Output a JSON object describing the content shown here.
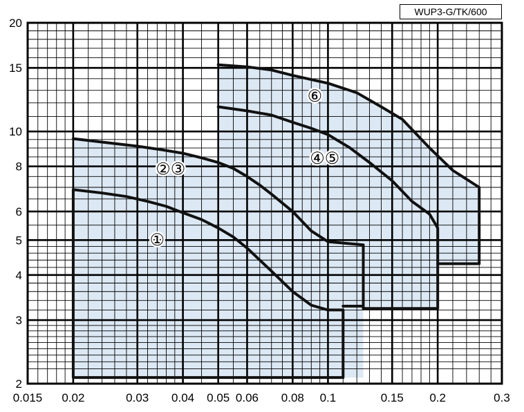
{
  "chart_data": {
    "type": "area",
    "title": "WUP3-G/TK/600",
    "xlabel": "",
    "ylabel": "",
    "x_scale": "log",
    "y_scale": "log",
    "xlim": [
      0.015,
      0.3
    ],
    "ylim": [
      2,
      20
    ],
    "grid": true,
    "x_ticks": [
      0.015,
      0.02,
      0.03,
      0.04,
      0.05,
      0.06,
      0.08,
      0.1,
      0.15,
      0.2,
      0.3
    ],
    "x_tick_labels": [
      "0.015",
      "0.02",
      "0.03",
      "0.04",
      "0.05",
      "0.06",
      "0.08",
      "0.1",
      "0.15",
      "0.2",
      "0.3"
    ],
    "y_ticks": [
      2,
      3,
      4,
      5,
      6,
      8,
      10,
      15,
      20
    ],
    "y_tick_labels": [
      "2",
      "3",
      "4",
      "5",
      "6",
      "8",
      "10",
      "15",
      "20"
    ],
    "fill_color": "#dce8f3",
    "line_color": "#111111",
    "regions": [
      {
        "id": "A",
        "points": [
          [
            0.02,
            2.08
          ],
          [
            0.02,
            9.55
          ],
          [
            0.03,
            9.1
          ],
          [
            0.04,
            8.7
          ],
          [
            0.05,
            8.2
          ],
          [
            0.06,
            7.5
          ],
          [
            0.07,
            6.7
          ],
          [
            0.08,
            6.0
          ],
          [
            0.09,
            5.3
          ],
          [
            0.1,
            4.95
          ],
          [
            0.125,
            4.85
          ],
          [
            0.125,
            3.28
          ],
          [
            0.11,
            3.2
          ],
          [
            0.11,
            2.08
          ]
        ]
      },
      {
        "id": "B",
        "points": [
          [
            0.05,
            2.08
          ],
          [
            0.05,
            15.3
          ],
          [
            0.06,
            15.1
          ],
          [
            0.07,
            14.8
          ],
          [
            0.08,
            14.3
          ],
          [
            0.1,
            13.6
          ],
          [
            0.12,
            12.8
          ],
          [
            0.14,
            11.7
          ],
          [
            0.16,
            10.8
          ],
          [
            0.19,
            9.0
          ],
          [
            0.22,
            7.8
          ],
          [
            0.26,
            7.0
          ],
          [
            0.26,
            4.3
          ],
          [
            0.2,
            4.3
          ],
          [
            0.2,
            3.23
          ],
          [
            0.125,
            3.23
          ],
          [
            0.125,
            2.08
          ]
        ]
      }
    ],
    "series": [
      {
        "label": "①",
        "label_at": [
          0.034,
          5.0
        ],
        "points": [
          [
            0.02,
            6.9
          ],
          [
            0.024,
            6.75
          ],
          [
            0.028,
            6.6
          ],
          [
            0.032,
            6.4
          ],
          [
            0.036,
            6.2
          ],
          [
            0.04,
            5.95
          ],
          [
            0.045,
            5.7
          ],
          [
            0.05,
            5.4
          ],
          [
            0.055,
            5.1
          ],
          [
            0.06,
            4.75
          ],
          [
            0.07,
            4.1
          ],
          [
            0.08,
            3.6
          ],
          [
            0.09,
            3.3
          ],
          [
            0.1,
            3.2
          ],
          [
            0.11,
            3.2
          ],
          [
            0.11,
            2.08
          ],
          [
            0.02,
            2.08
          ],
          [
            0.02,
            6.9
          ]
        ]
      },
      {
        "label": "②③",
        "label_at": [
          0.037,
          7.85
        ],
        "points": [
          [
            0.02,
            9.55
          ],
          [
            0.025,
            9.3
          ],
          [
            0.03,
            9.1
          ],
          [
            0.035,
            8.9
          ],
          [
            0.04,
            8.7
          ],
          [
            0.045,
            8.45
          ],
          [
            0.05,
            8.2
          ],
          [
            0.055,
            7.9
          ],
          [
            0.06,
            7.5
          ],
          [
            0.065,
            7.1
          ],
          [
            0.07,
            6.7
          ],
          [
            0.08,
            6.0
          ],
          [
            0.09,
            5.3
          ],
          [
            0.1,
            4.95
          ],
          [
            0.125,
            4.85
          ],
          [
            0.125,
            3.28
          ],
          [
            0.11,
            3.28
          ]
        ]
      },
      {
        "label": "④⑤",
        "label_at": [
          0.098,
          8.4
        ],
        "points": [
          [
            0.05,
            11.7
          ],
          [
            0.06,
            11.4
          ],
          [
            0.07,
            11.1
          ],
          [
            0.08,
            10.6
          ],
          [
            0.09,
            10.2
          ],
          [
            0.1,
            9.8
          ],
          [
            0.115,
            9.0
          ],
          [
            0.13,
            8.2
          ],
          [
            0.15,
            7.3
          ],
          [
            0.17,
            6.4
          ],
          [
            0.19,
            5.9
          ],
          [
            0.2,
            5.4
          ],
          [
            0.2,
            3.23
          ],
          [
            0.125,
            3.23
          ],
          [
            0.125,
            3.28
          ]
        ]
      },
      {
        "label": "⑥",
        "label_at": [
          0.092,
          12.5
        ],
        "points": [
          [
            0.05,
            15.3
          ],
          [
            0.06,
            15.1
          ],
          [
            0.07,
            14.8
          ],
          [
            0.08,
            14.3
          ],
          [
            0.1,
            13.6
          ],
          [
            0.12,
            12.8
          ],
          [
            0.14,
            11.7
          ],
          [
            0.16,
            10.8
          ],
          [
            0.19,
            9.0
          ],
          [
            0.22,
            7.8
          ],
          [
            0.26,
            7.0
          ],
          [
            0.26,
            4.3
          ],
          [
            0.2,
            4.3
          ]
        ]
      }
    ],
    "annotations": [
      "①",
      "②",
      "③",
      "④",
      "⑤",
      "⑥"
    ]
  }
}
